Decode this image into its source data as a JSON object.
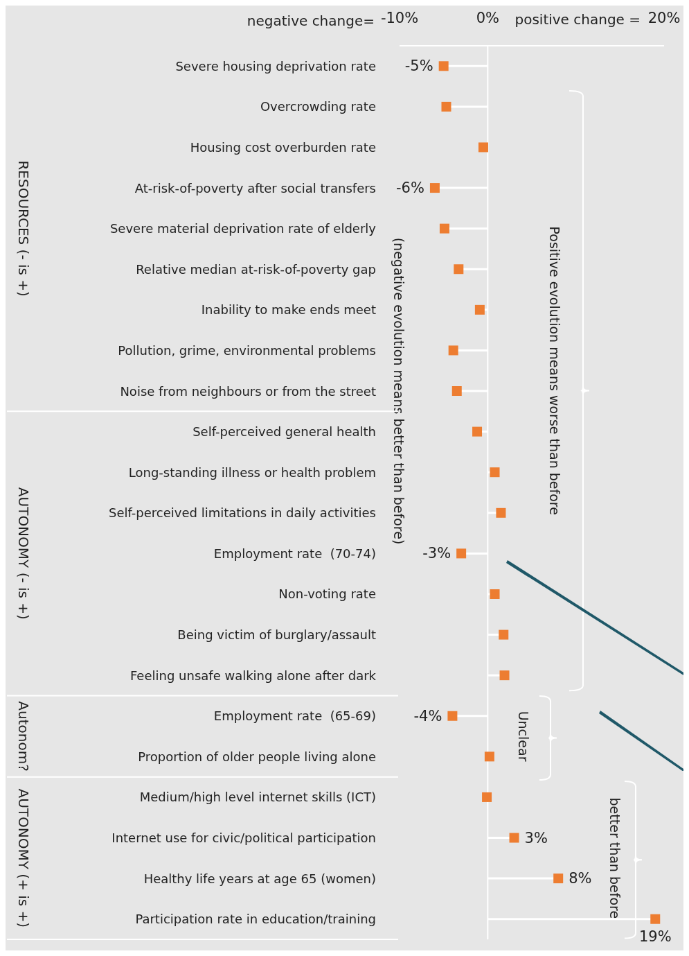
{
  "chart_data": {
    "type": "lollipop",
    "orientation": "horizontal",
    "marker": "square",
    "categories": [
      "Severe housing deprivation rate",
      "Overcrowding rate",
      "Housing cost overburden rate",
      "At-risk-of-poverty after social transfers",
      "Severe material deprivation rate of elderly",
      "Relative median at-risk-of-poverty gap",
      "Inability to make ends meet",
      "Pollution, grime, environmental problems",
      "Noise from neighbours or from the street",
      "Self-perceived general health",
      "Long-standing illness or health problem",
      "Self-perceived limitations in daily activities",
      "Employment rate  (70-74)",
      "Non-voting rate",
      "Being victim of burglary/assault",
      "Feeling unsafe walking alone after dark",
      "Employment rate  (65-69)",
      "Proportion of older people living alone",
      "Medium/high level internet skills (ICT)",
      "Internet use for civic/political participation",
      "Healthy life years at age 65 (women)",
      "Participation rate in education/training"
    ],
    "series": [
      {
        "color": "#ed7d31",
        "values": [
          -5,
          -4.7,
          -0.5,
          -6,
          -4.9,
          -3.3,
          -0.9,
          -3.9,
          -3.5,
          -1.2,
          0.8,
          1.5,
          -3,
          0.8,
          1.8,
          1.9,
          -4,
          0.2,
          -0.1,
          3,
          8,
          19
        ],
        "value_labels": [
          "-5%",
          null,
          null,
          "-6%",
          null,
          null,
          null,
          null,
          null,
          null,
          null,
          null,
          "-3%",
          null,
          null,
          null,
          "-4%",
          null,
          null,
          "3%",
          "8%",
          "19%"
        ]
      }
    ],
    "xlim": [
      -10,
      20
    ],
    "xticks": [
      {
        "value": -10,
        "label": "-10%"
      },
      {
        "value": 0,
        "label": "0%"
      },
      {
        "value": 20,
        "label": "20%"
      }
    ],
    "grid": false,
    "ref_lines": [
      {
        "axis": "x",
        "value": 0,
        "color": "#ffffff"
      }
    ],
    "annotations": [
      "RESOURCES (- is +)",
      "AUTONOMY (- is +)",
      "Autonom?",
      "AUTONOMY (+ is +)",
      "(negative evolution means better than before)",
      "Positive evolution means worse than before",
      "Unclear",
      "better than before",
      "negative change=",
      "positive change ="
    ]
  }
}
